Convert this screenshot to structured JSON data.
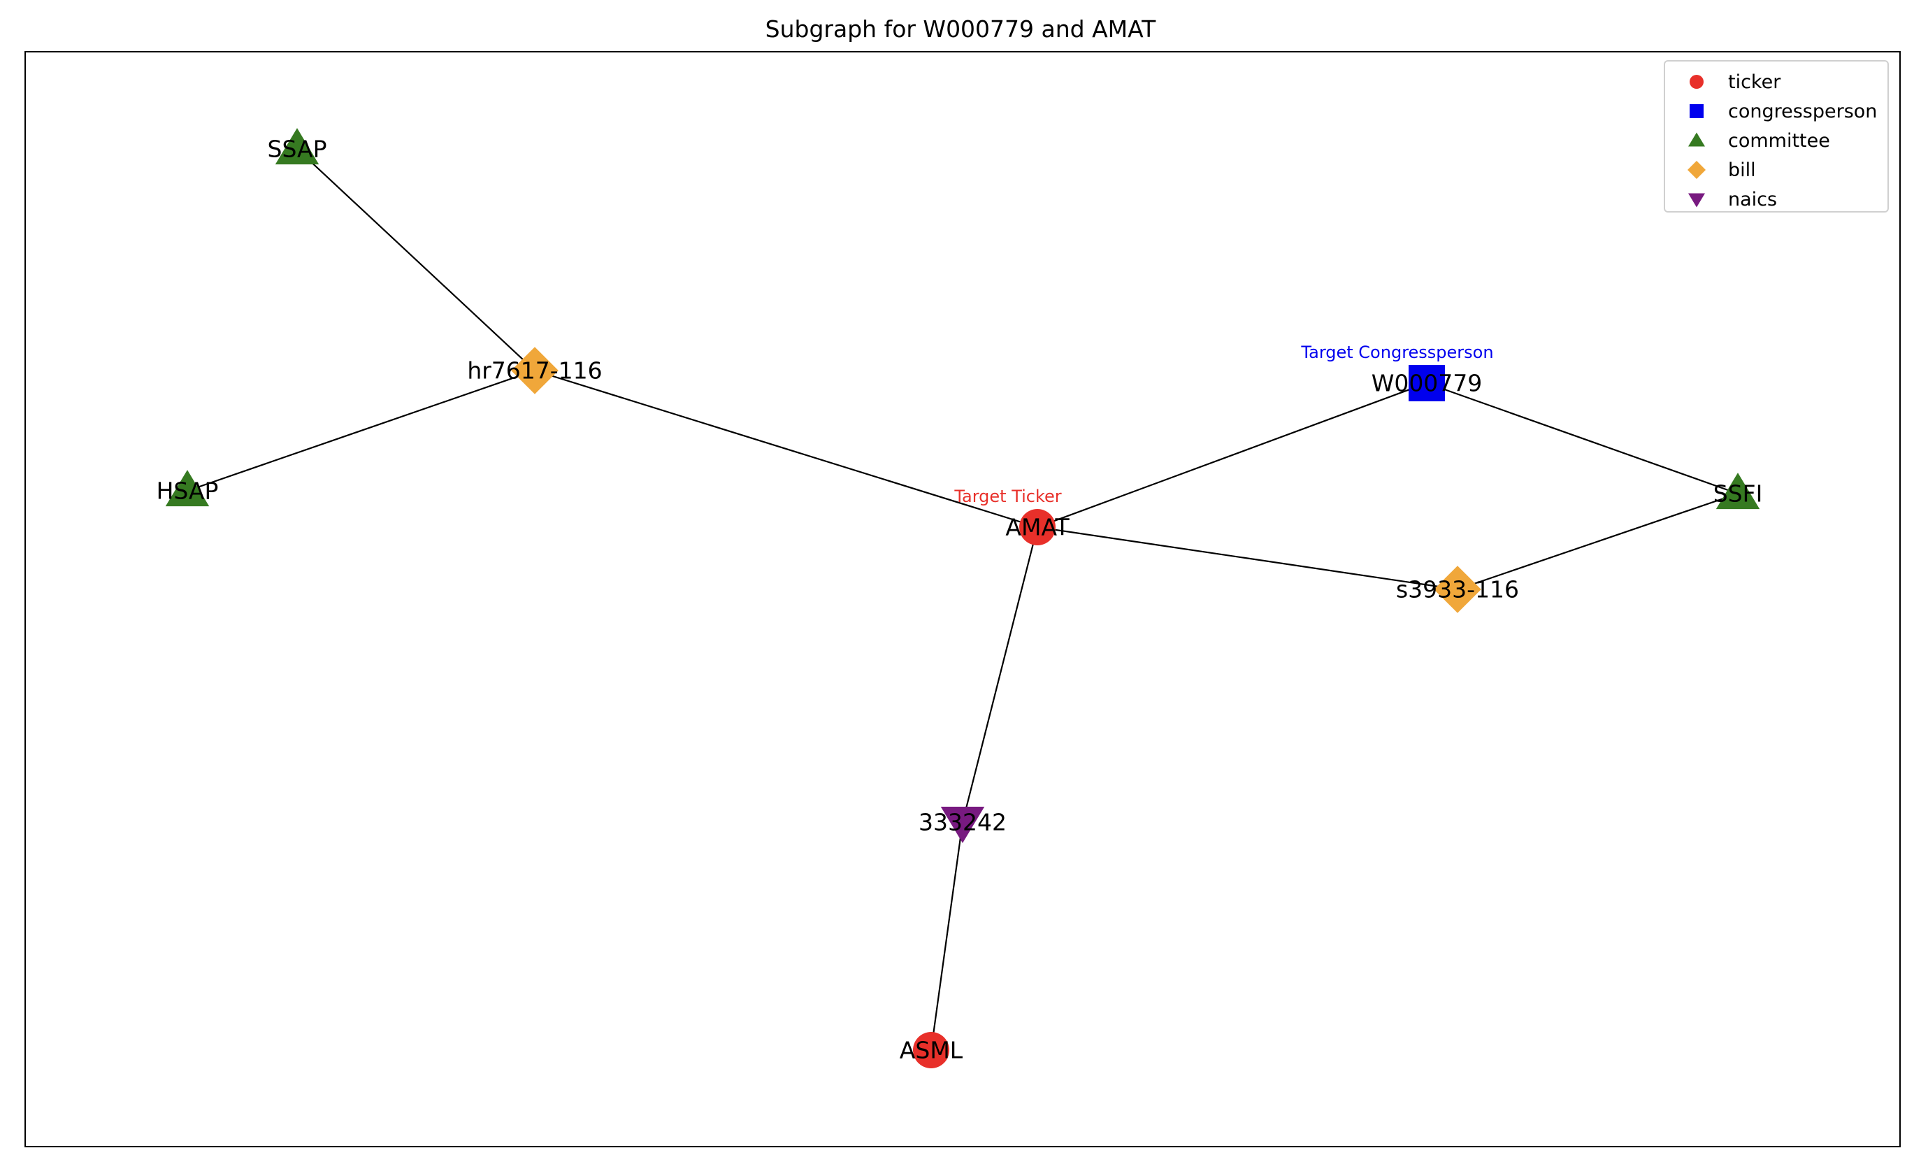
{
  "title": "Subgraph for W000779 and AMAT",
  "legend": [
    {
      "type": "ticker",
      "label": "ticker",
      "shape": "circle",
      "color": "#e8302a"
    },
    {
      "type": "congressperson",
      "label": "congressperson",
      "shape": "square",
      "color": "#0000ee"
    },
    {
      "type": "committee",
      "label": "committee",
      "shape": "triangle-up",
      "color": "#367a21"
    },
    {
      "type": "bill",
      "label": "bill",
      "shape": "diamond",
      "color": "#f0a73a"
    },
    {
      "type": "naics",
      "label": "naics",
      "shape": "triangle-down",
      "color": "#781a80"
    }
  ],
  "nodes": [
    {
      "id": "SSAP",
      "label": "SSAP",
      "type": "committee"
    },
    {
      "id": "hr7617-116",
      "label": "hr7617-116",
      "type": "bill"
    },
    {
      "id": "HSAP",
      "label": "HSAP",
      "type": "committee"
    },
    {
      "id": "AMAT",
      "label": "AMAT",
      "type": "ticker",
      "annotation": "Target Ticker",
      "annotation_color": "#e8302a"
    },
    {
      "id": "W000779",
      "label": "W000779",
      "type": "congressperson",
      "annotation": "Target Congressperson",
      "annotation_color": "#0000ee"
    },
    {
      "id": "SSFI",
      "label": "SSFI",
      "type": "committee"
    },
    {
      "id": "s3933-116",
      "label": "s3933-116",
      "type": "bill"
    },
    {
      "id": "333242",
      "label": "333242",
      "type": "naics"
    },
    {
      "id": "ASML",
      "label": "ASML",
      "type": "ticker"
    }
  ],
  "edges": [
    [
      "SSAP",
      "hr7617-116"
    ],
    [
      "hr7617-116",
      "HSAP"
    ],
    [
      "hr7617-116",
      "AMAT"
    ],
    [
      "AMAT",
      "W000779"
    ],
    [
      "W000779",
      "SSFI"
    ],
    [
      "AMAT",
      "s3933-116"
    ],
    [
      "s3933-116",
      "SSFI"
    ],
    [
      "AMAT",
      "333242"
    ],
    [
      "333242",
      "ASML"
    ]
  ]
}
